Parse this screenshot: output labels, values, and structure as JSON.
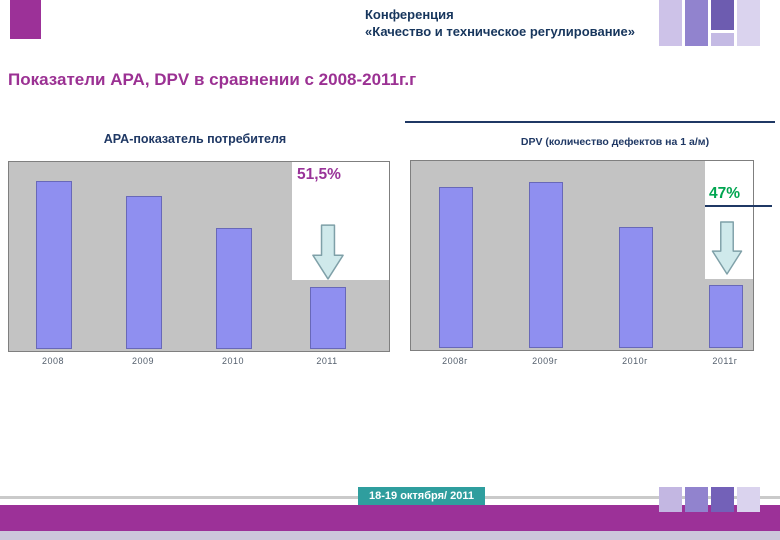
{
  "header": {
    "line1": "Конференция",
    "line2": "«Качество  и техническое регулирование»"
  },
  "slide": {
    "title": "Показатели APA, DPV в сравнении с 2008-2011г.г",
    "footer_date": "18-19 октября/ 2011"
  },
  "chart_data": [
    {
      "type": "bar",
      "title": "APA-показатель потребителя",
      "categories": [
        "2008",
        "2009",
        "2010",
        "2011"
      ],
      "values": [
        100,
        91,
        72,
        37
      ],
      "ylim": [
        0,
        100
      ],
      "grid": false,
      "legend": "none",
      "annotation": "51,5%",
      "annotation_color": "#993399",
      "bar_color": "#8F8FF0",
      "plot_bg": "#C3C3C3"
    },
    {
      "type": "bar",
      "title": "DPV (количество дефектов  на 1 а/м)",
      "categories": [
        "2008г",
        "2009г",
        "2010г",
        "2011г"
      ],
      "values": [
        97,
        100,
        73,
        38
      ],
      "ylim": [
        0,
        100
      ],
      "grid": false,
      "legend": "none",
      "annotation": "47%",
      "annotation_color": "#00A550",
      "bar_color": "#8F8FF0",
      "plot_bg": "#C3C3C3"
    }
  ],
  "icons": {
    "down_arrow": "down-arrow-icon"
  },
  "colors": {
    "title_magenta": "#9B3193",
    "header_navy": "#17365D",
    "footer_teal": "#2F9E9E",
    "band_magenta": "#9C3198",
    "arrow_fill": "#CFE9EB",
    "arrow_stroke": "#7FA0A8"
  }
}
